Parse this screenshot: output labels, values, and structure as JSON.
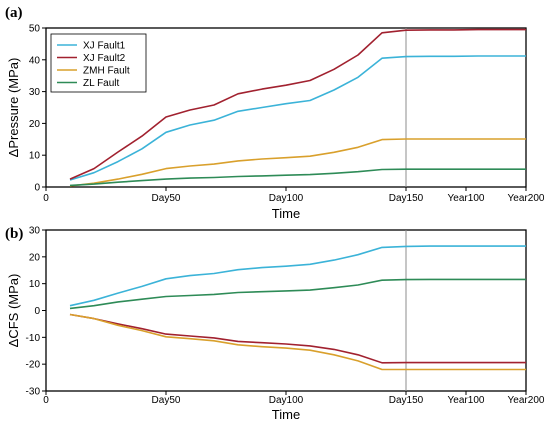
{
  "chart_data": [
    {
      "panel_label": "(a)",
      "type": "line",
      "xlabel": "Time",
      "ylabel": "ΔPressure (MPa)",
      "ylim": [
        0,
        50
      ],
      "yticks": [
        0,
        10,
        20,
        30,
        40,
        50
      ],
      "xticks": [
        "0",
        "Day50",
        "Day100",
        "Day150",
        "Year100",
        "Year200"
      ],
      "vline_at": "Day150",
      "legend": {
        "position": "top-left",
        "entries": [
          "XJ Fault1",
          "XJ Fault2",
          "ZMH Fault",
          "ZL Fault"
        ]
      },
      "x": [
        10,
        20,
        30,
        40,
        50,
        60,
        70,
        80,
        90,
        100,
        110,
        120,
        130,
        140,
        150,
        160,
        170,
        180,
        190,
        200
      ],
      "series": [
        {
          "name": "XJ Fault1",
          "color": "#3bb3d8",
          "values": [
            2.2,
            4.5,
            8.0,
            12.0,
            17.2,
            19.5,
            21.0,
            23.8,
            25.0,
            26.2,
            27.2,
            30.5,
            34.5,
            40.5,
            41.0,
            41.1,
            41.1,
            41.2,
            41.2,
            41.2
          ]
        },
        {
          "name": "XJ Fault2",
          "color": "#a1212f",
          "values": [
            2.5,
            5.8,
            11.0,
            16.0,
            22.0,
            24.2,
            25.8,
            29.3,
            30.8,
            32.0,
            33.5,
            37.0,
            41.5,
            48.5,
            49.3,
            49.4,
            49.4,
            49.5,
            49.5,
            49.5
          ]
        },
        {
          "name": "ZMH Fault",
          "color": "#d9a02c",
          "values": [
            0.3,
            1.2,
            2.5,
            4.0,
            5.8,
            6.6,
            7.2,
            8.2,
            8.8,
            9.2,
            9.7,
            10.9,
            12.5,
            14.9,
            15.1,
            15.1,
            15.1,
            15.1,
            15.1,
            15.1
          ]
        },
        {
          "name": "ZL Fault",
          "color": "#2e8b57",
          "values": [
            0.5,
            0.9,
            1.5,
            2.0,
            2.5,
            2.8,
            3.0,
            3.3,
            3.5,
            3.7,
            3.9,
            4.3,
            4.8,
            5.5,
            5.6,
            5.6,
            5.6,
            5.6,
            5.6,
            5.6
          ]
        }
      ]
    },
    {
      "panel_label": "(b)",
      "type": "line",
      "xlabel": "Time",
      "ylabel": "ΔCFS (MPa)",
      "ylim": [
        -30,
        30
      ],
      "yticks": [
        -30,
        -20,
        -10,
        0,
        10,
        20,
        30
      ],
      "xticks": [
        "0",
        "Day50",
        "Day100",
        "Day150",
        "Year100",
        "Year200"
      ],
      "vline_at": "Day150",
      "x": [
        10,
        20,
        30,
        40,
        50,
        60,
        70,
        80,
        90,
        100,
        110,
        120,
        130,
        140,
        150,
        160,
        170,
        180,
        190,
        200
      ],
      "series": [
        {
          "name": "XJ Fault1",
          "color": "#3bb3d8",
          "values": [
            1.8,
            3.8,
            6.5,
            9.0,
            11.8,
            13.0,
            13.8,
            15.2,
            16.0,
            16.5,
            17.2,
            18.8,
            20.8,
            23.5,
            23.9,
            24.0,
            24.0,
            24.0,
            24.0,
            24.0
          ]
        },
        {
          "name": "XJ Fault2",
          "color": "#a1212f",
          "values": [
            -1.5,
            -3.0,
            -5.0,
            -6.8,
            -8.8,
            -9.5,
            -10.2,
            -11.5,
            -12.0,
            -12.5,
            -13.2,
            -14.5,
            -16.5,
            -19.5,
            -19.4,
            -19.4,
            -19.4,
            -19.4,
            -19.4,
            -19.4
          ]
        },
        {
          "name": "ZMH Fault",
          "color": "#d9a02c",
          "values": [
            -1.5,
            -3.0,
            -5.5,
            -7.5,
            -9.8,
            -10.5,
            -11.3,
            -12.8,
            -13.5,
            -14.0,
            -14.8,
            -16.5,
            -18.8,
            -22.0,
            -22.0,
            -22.0,
            -22.0,
            -22.0,
            -22.0,
            -22.0
          ]
        },
        {
          "name": "ZL Fault",
          "color": "#2e8b57",
          "values": [
            0.8,
            1.8,
            3.2,
            4.2,
            5.2,
            5.6,
            6.0,
            6.7,
            7.0,
            7.3,
            7.6,
            8.5,
            9.5,
            11.3,
            11.5,
            11.6,
            11.6,
            11.6,
            11.6,
            11.6
          ]
        }
      ]
    }
  ]
}
